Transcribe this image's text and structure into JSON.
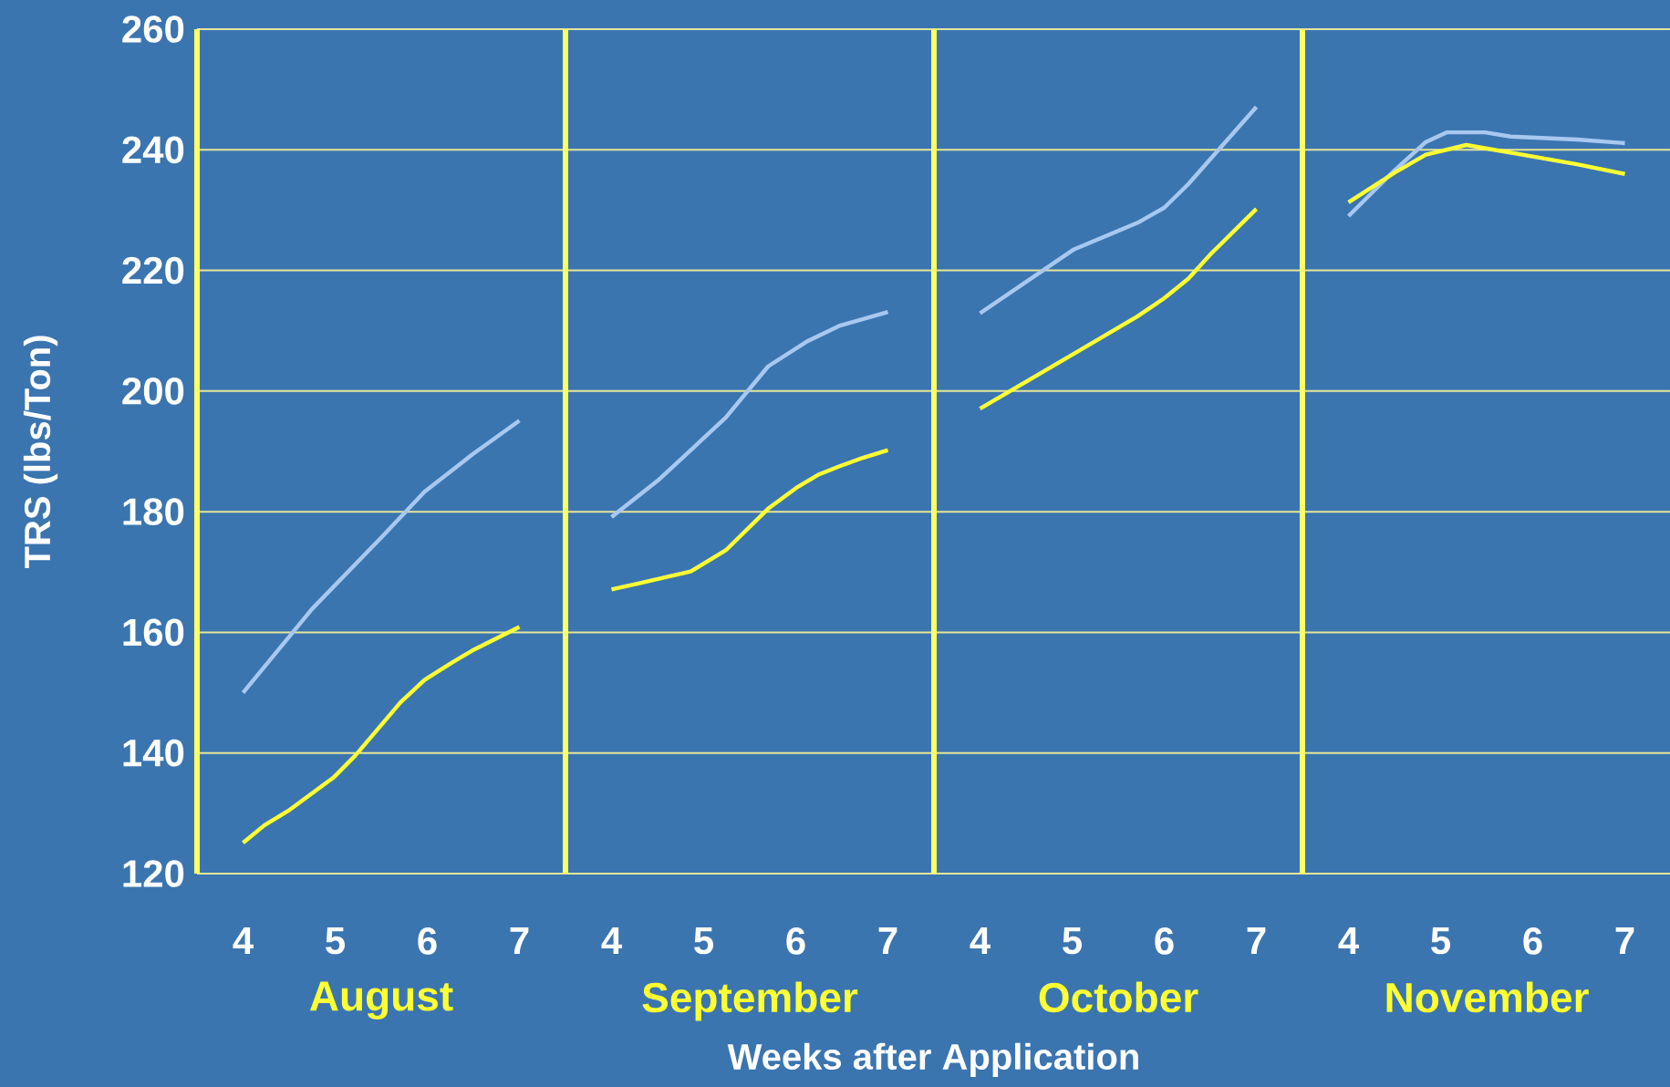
{
  "chart_data": [
    {
      "type": "line",
      "xlabel": "August",
      "ylabel": "TRS (lbs/Ton)",
      "annotations": [
        "Weeks after Application"
      ],
      "xlim": [
        3.5,
        7.5
      ],
      "xticks": [
        4,
        5,
        6,
        7
      ],
      "ylim": [
        120,
        260
      ],
      "yticks": [
        120,
        140,
        160,
        180,
        200,
        220,
        240,
        260
      ],
      "grid": "y",
      "series": [
        {
          "color": "#a8c8f0",
          "x": [
            4,
            4.75,
            5.5,
            5.97,
            6.49,
            7
          ],
          "values": [
            150,
            163.9,
            175.7,
            183.3,
            189.5,
            195.1
          ]
        },
        {
          "color": "#ffff33",
          "x": [
            4,
            4.23,
            4.49,
            4.98,
            5.22,
            5.71,
            5.97,
            6.26,
            6.49,
            7
          ],
          "values": [
            125.1,
            128,
            130.4,
            135.9,
            139.6,
            148.4,
            152.1,
            154.9,
            157,
            160.9
          ]
        }
      ]
    },
    {
      "type": "line",
      "xlabel": "September",
      "xlim": [
        3.5,
        7.5
      ],
      "xticks": [
        4,
        5,
        6,
        7
      ],
      "ylim": [
        120,
        260
      ],
      "yticks": [
        120,
        140,
        160,
        180,
        200,
        220,
        240,
        260
      ],
      "grid": "y",
      "tick_labels": "x",
      "series": [
        {
          "color": "#a8c8f0",
          "x": [
            4,
            4.52,
            5.24,
            5.7,
            6.13,
            6.47,
            7
          ],
          "values": [
            179.1,
            185.4,
            195.6,
            204.1,
            208.3,
            210.8,
            213.1
          ]
        },
        {
          "color": "#ffff33",
          "x": [
            4,
            4.29,
            4.86,
            5.24,
            5.7,
            6.01,
            6.24,
            6.47,
            6.72,
            7
          ],
          "values": [
            167.1,
            168.1,
            170.1,
            173.6,
            180.5,
            184,
            186.1,
            187.5,
            188.9,
            190.2
          ]
        }
      ]
    },
    {
      "type": "line",
      "xlabel": "October",
      "xlim": [
        3.5,
        7.5
      ],
      "xticks": [
        4,
        5,
        6,
        7
      ],
      "ylim": [
        120,
        260
      ],
      "yticks": [
        120,
        140,
        160,
        180,
        200,
        220,
        240,
        260
      ],
      "grid": "y",
      "tick_labels": "x",
      "series": [
        {
          "color": "#a8c8f0",
          "x": [
            4,
            5.02,
            5.71,
            6.0,
            6.26,
            7
          ],
          "values": [
            212.9,
            223.5,
            227.9,
            230.4,
            234.3,
            247.1
          ]
        },
        {
          "color": "#ffff33",
          "x": [
            4,
            5.02,
            5.71,
            6.0,
            6.26,
            6.51,
            7
          ],
          "values": [
            197.1,
            206.2,
            212.4,
            215.4,
            218.6,
            222.8,
            230.2
          ]
        }
      ]
    },
    {
      "type": "line",
      "xlabel": "November",
      "xlim": [
        3.5,
        7.5
      ],
      "xticks": [
        4,
        5,
        6,
        7
      ],
      "ylim": [
        120,
        260
      ],
      "yticks": [
        120,
        140,
        160,
        180,
        200,
        220,
        240,
        260
      ],
      "grid": "y",
      "tick_labels": "x",
      "series": [
        {
          "color": "#a8c8f0",
          "x": [
            4,
            4.5,
            4.84,
            5.07,
            5.48,
            5.76,
            6.48,
            7
          ],
          "values": [
            229,
            236.6,
            241.3,
            242.9,
            242.9,
            242.2,
            241.7,
            241.1
          ]
        },
        {
          "color": "#ffff33",
          "x": [
            4,
            4.5,
            4.84,
            5.28,
            6.0,
            6.48,
            7
          ],
          "values": [
            231.3,
            236.2,
            239.2,
            240.8,
            238.9,
            237.6,
            236.0
          ]
        }
      ]
    }
  ]
}
